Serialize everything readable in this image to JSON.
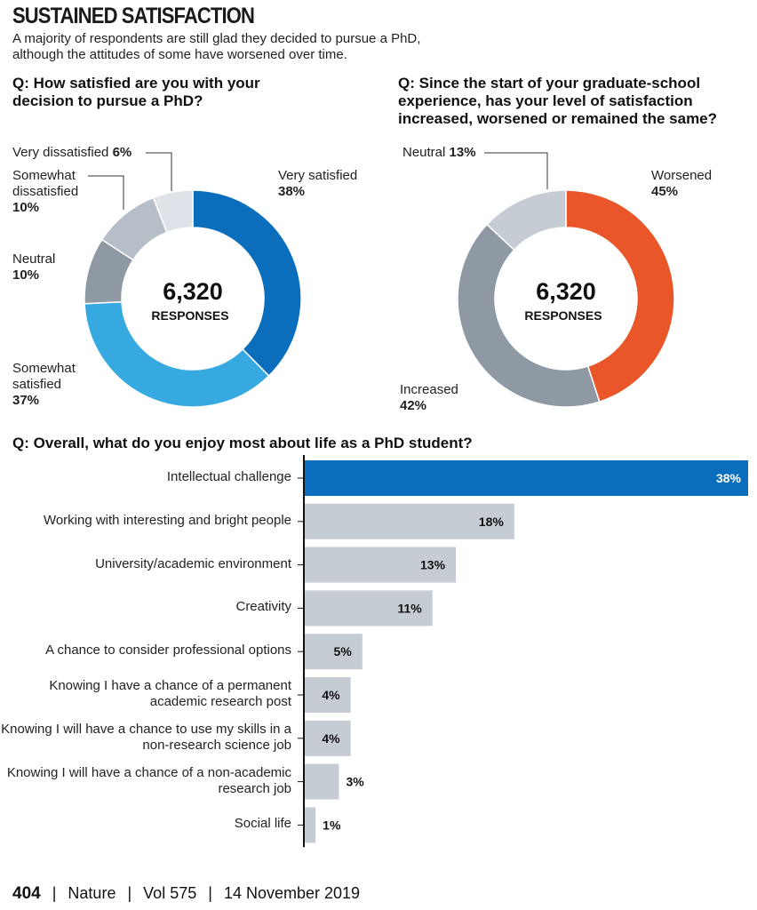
{
  "header": {
    "title": "SUSTAINED SATISFACTION",
    "subtitle": "A majority of respondents are still glad they decided to pursue a PhD, although the attitudes of some have worsened over time."
  },
  "chart_data": [
    {
      "type": "pie",
      "question": "Q: How satisfied are you with your decision to pursue a PhD?",
      "center_value": "6,320",
      "center_label": "RESPONSES",
      "slices": [
        {
          "name": "Very satisfied",
          "value": 38,
          "label": "38%",
          "color": "#0a6ebd"
        },
        {
          "name": "Somewhat satisfied",
          "value": 37,
          "label": "37%",
          "color": "#37a9e1"
        },
        {
          "name": "Neutral",
          "value": 10,
          "label": "10%",
          "color": "#8e99a4"
        },
        {
          "name": "Somewhat dissatisfied",
          "value": 10,
          "label": "10%",
          "color": "#b6bfc8"
        },
        {
          "name": "Very dissatisfied",
          "value": 6,
          "label": "6%",
          "color": "#dde3e9"
        }
      ]
    },
    {
      "type": "pie",
      "question": "Q: Since the start of your graduate-school experience, has your level of satisfaction increased, worsened or remained the same?",
      "center_value": "6,320",
      "center_label": "RESPONSES",
      "slices": [
        {
          "name": "Worsened",
          "value": 45,
          "label": "45%",
          "color": "#e8562a"
        },
        {
          "name": "Increased",
          "value": 42,
          "label": "42%",
          "color": "#8e99a4"
        },
        {
          "name": "Neutral",
          "value": 13,
          "label": "13%",
          "color": "#c5ccd3"
        }
      ]
    },
    {
      "type": "bar",
      "orientation": "horizontal",
      "question": "Q: Overall, what do you enjoy most about life as a PhD student?",
      "xlim": [
        0,
        38
      ],
      "categories": [
        "Intellectual challenge",
        "Working with interesting and bright people",
        "University/academic environment",
        "Creativity",
        "A chance to consider professional options",
        "Knowing I have a chance of a permanent academic research post",
        "Knowing I will have a chance to use my skills in a non-research science job",
        "Knowing I will have a chance of a non-academic research job",
        "Social life"
      ],
      "values": [
        38,
        18,
        13,
        11,
        5,
        4,
        4,
        3,
        1
      ],
      "value_labels": [
        "38%",
        "18%",
        "13%",
        "11%",
        "5%",
        "4%",
        "4%",
        "3%",
        "1%"
      ],
      "highlight_color": "#0a6ebd",
      "bar_color": "#c5ccd3"
    }
  ],
  "footer": {
    "page": "404",
    "sep1": "|",
    "journal": "Nature",
    "sep2": "|",
    "volume": "Vol 575",
    "sep3": "|",
    "date": "14 November 2019"
  }
}
